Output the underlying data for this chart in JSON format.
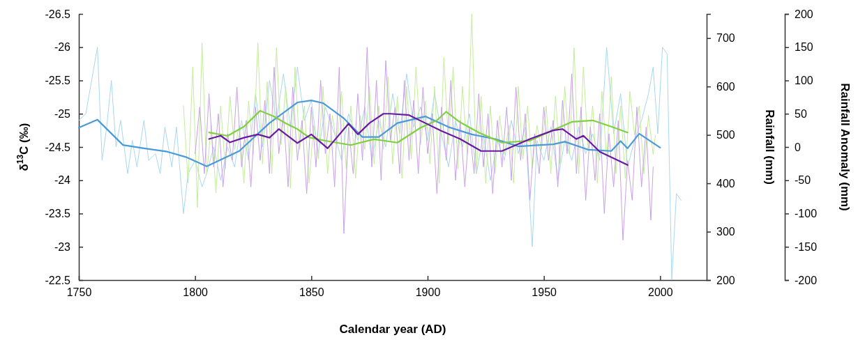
{
  "chart_data": {
    "type": "line",
    "xlabel": "Calendar year (AD)",
    "ylabel": "δ$^{13}$C (‰)",
    "y2label": "Rainfall (mm)",
    "y3label": "Rainfall Anomaly (mm)",
    "xlim": [
      1750,
      2020
    ],
    "xticks": [
      1750,
      1800,
      1850,
      1900,
      1950,
      2000
    ],
    "ylim": [
      -22.5,
      -26.5
    ],
    "yticks": [
      -22.5,
      -23,
      -23.5,
      -24,
      -24.5,
      -25,
      -25.5,
      -26,
      -26.5
    ],
    "y2lim": [
      200,
      750
    ],
    "y2ticks": [
      200,
      300,
      400,
      500,
      600,
      700
    ],
    "y3lim": [
      -200,
      200
    ],
    "y3ticks": [
      -200,
      -150,
      -100,
      -50,
      0,
      50,
      100,
      150,
      200
    ],
    "grid": false,
    "marker": "none",
    "line_style": "solid",
    "series": [
      {
        "color": "#a8d8ee",
        "axis": "y",
        "x": [
          1750,
          1753,
          1756,
          1758,
          1760,
          1762,
          1764,
          1766,
          1768,
          1771,
          1773,
          1775,
          1778,
          1780,
          1783,
          1785,
          1787,
          1790,
          1792,
          1795,
          1797,
          1800,
          1803,
          1805,
          1808,
          1811,
          1814,
          1817,
          1820,
          1823,
          1826,
          1829,
          1832,
          1835,
          1838,
          1841,
          1844,
          1847,
          1850,
          1853,
          1856,
          1860,
          1863,
          1866,
          1870,
          1873,
          1876,
          1879,
          1882,
          1885,
          1888,
          1891,
          1894,
          1897,
          1900,
          1903,
          1906,
          1909,
          1912,
          1915,
          1918,
          1921,
          1924,
          1927,
          1930,
          1933,
          1936,
          1939,
          1942,
          1945,
          1947,
          1950,
          1953,
          1956,
          1959,
          1962,
          1965,
          1968,
          1971,
          1974,
          1977,
          1980,
          1983,
          1986,
          1989,
          1992,
          1995,
          1997,
          1999,
          2001,
          2003,
          2005,
          2007,
          2009
        ],
        "values": [
          -24.9,
          -25.0,
          -25.6,
          -26.0,
          -24.3,
          -24.8,
          -25.5,
          -24.5,
          -24.9,
          -24.1,
          -24.6,
          -24.2,
          -24.9,
          -24.3,
          -24.4,
          -24.1,
          -24.8,
          -24.2,
          -24.8,
          -23.5,
          -24.1,
          -24.3,
          -23.9,
          -24.1,
          -24.5,
          -24.0,
          -24.5,
          -24.2,
          -24.9,
          -24.3,
          -25.3,
          -24.5,
          -25.5,
          -24.9,
          -25.6,
          -24.8,
          -25.7,
          -24.9,
          -25.2,
          -24.4,
          -25.1,
          -24.7,
          -24.3,
          -25.0,
          -24.6,
          -25.1,
          -24.3,
          -24.9,
          -24.5,
          -25.3,
          -24.7,
          -25.6,
          -24.8,
          -25.1,
          -24.6,
          -25.3,
          -24.7,
          -24.2,
          -24.9,
          -24.5,
          -25.0,
          -24.1,
          -24.7,
          -24.0,
          -24.6,
          -24.3,
          -24.9,
          -24.4,
          -24.8,
          -23.0,
          -24.6,
          -24.3,
          -24.8,
          -24.0,
          -24.6,
          -24.3,
          -24.8,
          -24.4,
          -24.7,
          -24.3,
          -26.0,
          -24.7,
          -25.3,
          -24.2,
          -24.6,
          -24.9,
          -25.3,
          -25.7,
          -24.7,
          -26.0,
          -25.9,
          -22.5,
          -23.8,
          -23.7
        ]
      },
      {
        "color": "#c4ec9c",
        "axis": "y2",
        "x": [
          1795,
          1797,
          1799,
          1801,
          1803,
          1805,
          1807,
          1809,
          1811,
          1813,
          1815,
          1817,
          1819,
          1821,
          1823,
          1825,
          1827,
          1829,
          1831,
          1833,
          1835,
          1837,
          1839,
          1841,
          1843,
          1845,
          1847,
          1849,
          1851,
          1853,
          1855,
          1857,
          1859,
          1861,
          1863,
          1865,
          1867,
          1869,
          1871,
          1873,
          1875,
          1877,
          1879,
          1881,
          1883,
          1885,
          1887,
          1889,
          1891,
          1893,
          1895,
          1897,
          1899,
          1901,
          1903,
          1905,
          1907,
          1909,
          1911,
          1913,
          1915,
          1917,
          1919,
          1921,
          1923,
          1925,
          1927,
          1929,
          1931,
          1933,
          1935,
          1937,
          1939,
          1941,
          1943,
          1945,
          1947,
          1949,
          1951,
          1953,
          1955,
          1957,
          1959,
          1961,
          1963,
          1965,
          1967,
          1969,
          1971,
          1973,
          1975,
          1977,
          1979,
          1981,
          1983,
          1985,
          1987,
          1989,
          1991,
          1993,
          1995,
          1997,
          1998
        ],
        "values": [
          560,
          400,
          640,
          350,
          690,
          420,
          520,
          380,
          560,
          430,
          580,
          470,
          520,
          400,
          570,
          460,
          690,
          440,
          610,
          420,
          680,
          480,
          600,
          390,
          640,
          470,
          560,
          400,
          520,
          450,
          600,
          420,
          540,
          480,
          590,
          430,
          560,
          410,
          540,
          470,
          600,
          440,
          560,
          470,
          620,
          440,
          580,
          410,
          600,
          450,
          640,
          480,
          570,
          440,
          600,
          400,
          660,
          480,
          640,
          430,
          600,
          460,
          750,
          420,
          580,
          400,
          560,
          420,
          540,
          460,
          520,
          400,
          600,
          450,
          560,
          430,
          520,
          470,
          560,
          420,
          580,
          440,
          600,
          460,
          680,
          420,
          640,
          470,
          560,
          400,
          590,
          450,
          620,
          420,
          560,
          410,
          590,
          500,
          560,
          420,
          540,
          460,
          500
        ]
      },
      {
        "color": "#c8a0e8",
        "axis": "y3",
        "x": [
          1800,
          1802,
          1804,
          1806,
          1808,
          1810,
          1812,
          1814,
          1816,
          1818,
          1820,
          1822,
          1824,
          1826,
          1828,
          1830,
          1832,
          1834,
          1836,
          1838,
          1840,
          1842,
          1844,
          1846,
          1848,
          1850,
          1852,
          1854,
          1856,
          1858,
          1860,
          1862,
          1864,
          1866,
          1868,
          1870,
          1872,
          1874,
          1876,
          1878,
          1880,
          1882,
          1884,
          1886,
          1888,
          1890,
          1892,
          1894,
          1896,
          1898,
          1900,
          1902,
          1904,
          1906,
          1908,
          1910,
          1912,
          1914,
          1916,
          1918,
          1920,
          1922,
          1924,
          1926,
          1928,
          1930,
          1932,
          1934,
          1936,
          1938,
          1940,
          1942,
          1944,
          1946,
          1948,
          1950,
          1952,
          1954,
          1956,
          1958,
          1960,
          1962,
          1964,
          1966,
          1968,
          1970,
          1972,
          1974,
          1976,
          1978,
          1980,
          1982,
          1984,
          1986,
          1988,
          1990,
          1992,
          1994,
          1996,
          1997
        ],
        "values": [
          -10,
          60,
          -40,
          80,
          -30,
          50,
          -60,
          20,
          -20,
          90,
          -30,
          40,
          -60,
          60,
          -20,
          70,
          -40,
          120,
          -10,
          50,
          -60,
          90,
          -20,
          40,
          -70,
          60,
          -30,
          100,
          -10,
          50,
          -60,
          120,
          -130,
          30,
          -40,
          80,
          -20,
          150,
          -30,
          100,
          -50,
          130,
          10,
          60,
          -40,
          100,
          -20,
          70,
          -40,
          90,
          -10,
          50,
          -70,
          60,
          -20,
          100,
          -50,
          40,
          -60,
          30,
          -40,
          80,
          -30,
          50,
          -70,
          40,
          -30,
          60,
          -50,
          90,
          -20,
          50,
          -80,
          20,
          -40,
          60,
          -20,
          40,
          -60,
          70,
          -10,
          110,
          -40,
          60,
          -80,
          30,
          -50,
          50,
          -100,
          20,
          -60,
          40,
          -140,
          -20,
          -80,
          60,
          -60,
          30,
          -110,
          -30
        ]
      },
      {
        "color": "#4a9ad8",
        "axis": "y",
        "x": [
          1750,
          1758,
          1769,
          1778,
          1788,
          1796,
          1805,
          1819,
          1832,
          1844,
          1850,
          1855,
          1864,
          1872,
          1879,
          1887,
          1899,
          1909,
          1919,
          1929,
          1939,
          1954,
          1959,
          1969,
          1979,
          1983,
          1986,
          1991,
          2000
        ],
        "values": [
          -24.79,
          -24.91,
          -24.53,
          -24.48,
          -24.43,
          -24.35,
          -24.21,
          -24.44,
          -24.86,
          -25.17,
          -25.2,
          -25.16,
          -24.93,
          -24.65,
          -24.65,
          -24.86,
          -24.96,
          -24.8,
          -24.69,
          -24.62,
          -24.51,
          -24.54,
          -24.58,
          -24.46,
          -24.44,
          -24.59,
          -24.48,
          -24.7,
          -24.49
        ]
      },
      {
        "color": "#80d040",
        "axis": "y2",
        "x": [
          1806,
          1814,
          1821,
          1828,
          1834,
          1839,
          1844,
          1849,
          1856,
          1867,
          1877,
          1887,
          1897,
          1904,
          1908,
          1914,
          1922,
          1932,
          1944,
          1954,
          1962,
          1971,
          1979,
          1986
        ],
        "values": [
          505,
          498,
          517,
          550,
          538,
          524,
          512,
          495,
          488,
          479,
          491,
          484,
          515,
          530,
          548,
          526,
          505,
          484,
          488,
          510,
          527,
          530,
          517,
          505
        ]
      },
      {
        "color": "#6a1aa0",
        "axis": "y3",
        "x": [
          1806,
          1811,
          1815,
          1821,
          1827,
          1832,
          1836,
          1844,
          1850,
          1857,
          1866,
          1870,
          1875,
          1881,
          1884,
          1892,
          1899,
          1906,
          1914,
          1923,
          1932,
          1944,
          1954,
          1958,
          1964,
          1967,
          1974,
          1980,
          1986
        ],
        "values": [
          12,
          17,
          7,
          14,
          19,
          14,
          27,
          6,
          19,
          -2,
          35,
          19,
          36,
          50,
          50,
          48,
          36,
          24,
          12,
          -6,
          -6,
          12,
          25,
          27,
          12,
          17,
          -7,
          -17,
          -27
        ]
      }
    ]
  }
}
